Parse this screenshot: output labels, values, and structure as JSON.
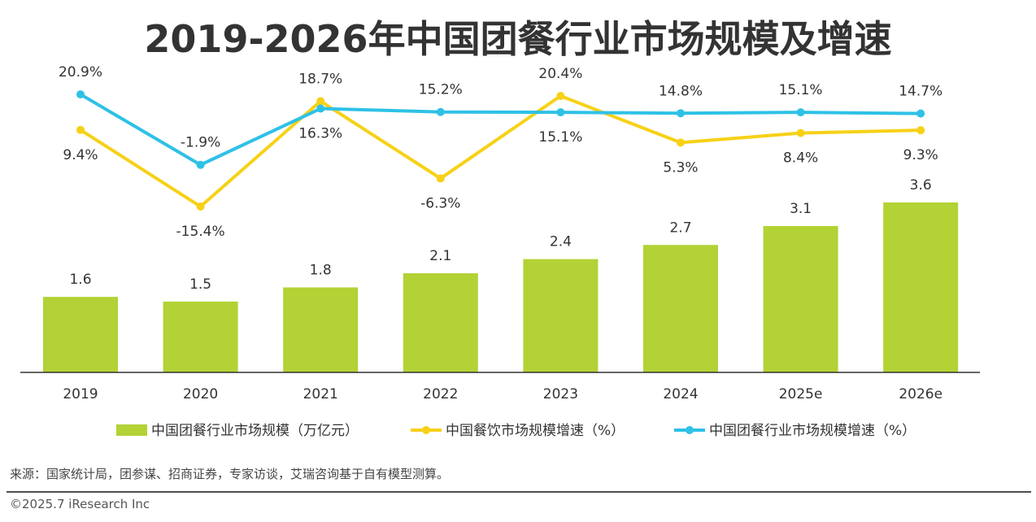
{
  "title": "2019-2026年中国团餐行业市场规模及增速",
  "source": "来源：国家统计局，团参谋、招商证券，专家访谈，艾瑞咨询基于自有模型测算。",
  "copyright": "©2025.7 iResearch Inc",
  "chart_data": {
    "type": "bar",
    "title": "2019-2026年中国团餐行业市场规模及增速",
    "categories": [
      "2019",
      "2020",
      "2021",
      "2022",
      "2023",
      "2024",
      "2025e",
      "2026e"
    ],
    "series": [
      {
        "name": "中国团餐行业市场规模（万亿元）",
        "type": "bar",
        "color": "#b2d235",
        "values": [
          1.6,
          1.5,
          1.8,
          2.1,
          2.4,
          2.7,
          3.1,
          3.6
        ],
        "labels": [
          "1.6",
          "1.5",
          "1.8",
          "2.1",
          "2.4",
          "2.7",
          "3.1",
          "3.6"
        ]
      },
      {
        "name": "中国餐饮市场规模增速（%）",
        "type": "line",
        "color": "#f7d117",
        "values": [
          9.4,
          -15.4,
          18.7,
          -6.3,
          20.4,
          5.3,
          8.4,
          9.3
        ],
        "labels": [
          "9.4%",
          "-15.4%",
          "18.7%",
          "-6.3%",
          "20.4%",
          "5.3%",
          "8.4%",
          "9.3%"
        ]
      },
      {
        "name": "中国团餐行业市场规模增速（%）",
        "type": "line",
        "color": "#2ec1e6",
        "values": [
          20.9,
          -1.9,
          16.3,
          15.2,
          15.1,
          14.8,
          15.1,
          14.7
        ],
        "labels": [
          "20.9%",
          "-1.9%",
          "16.3%",
          "15.2%",
          "15.1%",
          "14.8%",
          "15.1%",
          "14.7%"
        ]
      }
    ],
    "ylim_bar": [
      0,
      4.2
    ],
    "ylim_line": [
      -21,
      42
    ],
    "legend": "bottom",
    "grid": false
  }
}
